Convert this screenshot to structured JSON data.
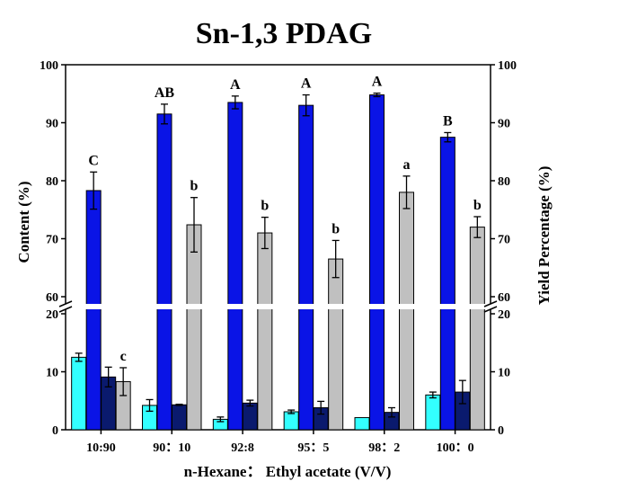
{
  "chart_data": {
    "type": "bar",
    "title": "Sn-1,3 PDAG",
    "xlabel": "n-Hexane： Ethyl acetate (V/V)",
    "ylabel": "Content (%)",
    "ylabel_right": "Yield Percentage (%)",
    "categories": [
      "10:90",
      "90：10",
      "92:8",
      "95：5",
      "98：2",
      "100：0"
    ],
    "y_axis": {
      "broken": true,
      "lower_segment": [
        0,
        20
      ],
      "upper_segment": [
        60,
        100
      ],
      "lower_ticks": [
        "0",
        "10",
        "20"
      ],
      "upper_ticks": [
        "60",
        "70",
        "80",
        "90",
        "100"
      ]
    },
    "series": [
      {
        "color": "#33ffff",
        "values": [
          12.5,
          4.2,
          1.8,
          3.1,
          2.1,
          6.0
        ],
        "errors": [
          0.7,
          1.0,
          0.4,
          0.3,
          0,
          0.5
        ]
      },
      {
        "color": "#0a14e6",
        "values": [
          78.3,
          91.5,
          93.5,
          93.0,
          94.8,
          87.5
        ],
        "errors": [
          3.2,
          1.7,
          1.1,
          1.8,
          0.3,
          0.8
        ]
      },
      {
        "color": "#0a1a6e",
        "values": [
          9.1,
          4.3,
          4.6,
          3.8,
          3.0,
          6.5
        ],
        "errors": [
          1.7,
          0.1,
          0.5,
          1.1,
          0.8,
          2.0
        ]
      },
      {
        "color": "#c0c0c0",
        "values": [
          8.3,
          72.4,
          71.0,
          66.5,
          78.0,
          72.0
        ],
        "errors": [
          2.4,
          4.7,
          2.7,
          3.2,
          2.8,
          1.8
        ]
      }
    ],
    "significance_letters": {
      "upper_case": [
        "C",
        "AB",
        "A",
        "A",
        "A",
        "B"
      ],
      "lower_case": [
        "c",
        "b",
        "b",
        "b",
        "a",
        "b"
      ]
    },
    "grid": false
  }
}
